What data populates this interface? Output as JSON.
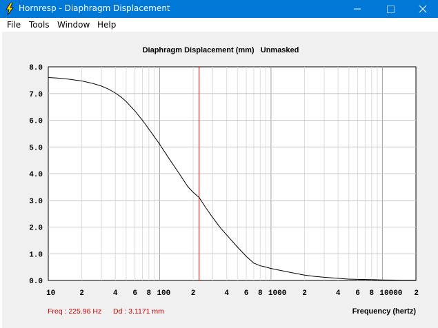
{
  "window": {
    "title": "Hornresp - Diaphragm Displacement",
    "colors": {
      "titlebar": "#0078d7",
      "title_text": "#ffffff"
    }
  },
  "menu": {
    "items": [
      "File",
      "Tools",
      "Window",
      "Help"
    ]
  },
  "chart_data": {
    "type": "line",
    "title": "Diaphragm Displacement (mm)   Unmasked",
    "xlabel": "Frequency (hertz)",
    "ylabel": "",
    "x_scale": "log",
    "xlim": [
      10,
      20000
    ],
    "ylim": [
      0,
      8
    ],
    "x_tick_labels": [
      {
        "value": 10,
        "label": "10"
      },
      {
        "value": 20,
        "label": "2"
      },
      {
        "value": 40,
        "label": "4"
      },
      {
        "value": 60,
        "label": "6"
      },
      {
        "value": 80,
        "label": "8"
      },
      {
        "value": 100,
        "label": "100"
      },
      {
        "value": 200,
        "label": "2"
      },
      {
        "value": 400,
        "label": "4"
      },
      {
        "value": 600,
        "label": "6"
      },
      {
        "value": 800,
        "label": "8"
      },
      {
        "value": 1000,
        "label": "1000"
      },
      {
        "value": 2000,
        "label": "2"
      },
      {
        "value": 4000,
        "label": "4"
      },
      {
        "value": 6000,
        "label": "6"
      },
      {
        "value": 8000,
        "label": "8"
      },
      {
        "value": 10000,
        "label": "10000"
      },
      {
        "value": 20000,
        "label": "2"
      }
    ],
    "y_ticks": [
      0,
      1,
      2,
      3,
      4,
      5,
      6,
      7,
      8
    ],
    "y_tick_labels": [
      "0.0",
      "1.0",
      "2.0",
      "3.0",
      "4.0",
      "5.0",
      "6.0",
      "7.0",
      "8.0"
    ],
    "grid": true,
    "series": [
      {
        "name": "Diaphragm Displacement",
        "color": "#000000",
        "x": [
          10,
          12,
          15,
          20,
          25,
          30,
          35,
          40,
          45,
          50,
          60,
          70,
          80,
          90,
          100,
          120,
          150,
          180,
          200,
          226,
          260,
          300,
          350,
          400,
          500,
          600,
          700,
          800,
          900,
          1000,
          1200,
          1500,
          2000,
          2500,
          3000,
          4000,
          5000,
          6000,
          8000,
          10000,
          15000,
          20000
        ],
        "y": [
          7.6,
          7.58,
          7.54,
          7.47,
          7.38,
          7.28,
          7.16,
          7.02,
          6.87,
          6.7,
          6.35,
          6.0,
          5.67,
          5.37,
          5.1,
          4.6,
          4.0,
          3.5,
          3.3,
          3.11,
          2.72,
          2.35,
          1.98,
          1.7,
          1.25,
          0.9,
          0.65,
          0.55,
          0.5,
          0.45,
          0.38,
          0.3,
          0.2,
          0.15,
          0.12,
          0.08,
          0.05,
          0.04,
          0.03,
          0.02,
          0.01,
          0.01
        ]
      }
    ],
    "marker": {
      "x": 225.96,
      "color": "#cc0000"
    },
    "readout": {
      "freq": "Freq : 225.96 Hz",
      "dd": "Dd : 3.1171 mm",
      "color": "#cc0000"
    }
  }
}
